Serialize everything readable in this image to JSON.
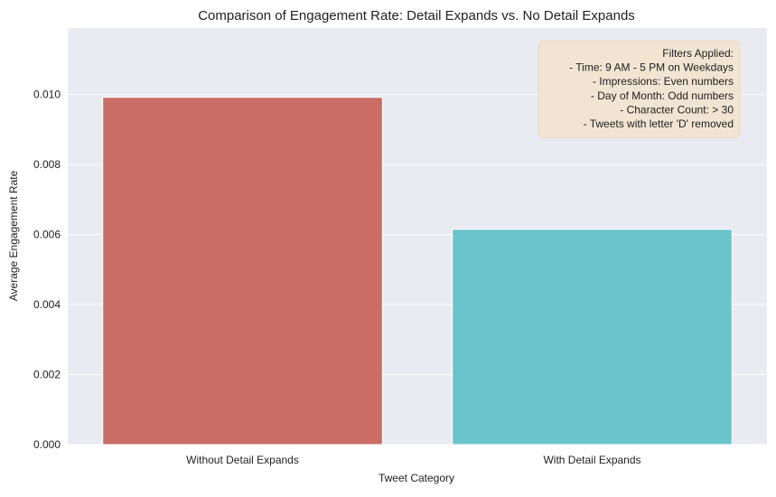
{
  "chart_data": {
    "type": "bar",
    "title": "Comparison of Engagement Rate: Detail Expands vs. No Detail Expands",
    "xlabel": "Tweet Category",
    "ylabel": "Average Engagement Rate",
    "categories": [
      "Without Detail Expands",
      "With Detail Expands"
    ],
    "values": [
      0.00992,
      0.00615
    ],
    "bar_colors": [
      "#c96d66",
      "#69c5cb"
    ],
    "ylim": [
      0,
      0.0119
    ],
    "yticks": [
      0.0,
      0.002,
      0.004,
      0.006,
      0.008,
      0.01
    ],
    "ytick_labels": [
      "0.000",
      "0.002",
      "0.004",
      "0.006",
      "0.008",
      "0.010"
    ],
    "grid": true,
    "annotation": {
      "placement": "top-right",
      "lines": [
        "Filters Applied:",
        "- Time: 9 AM - 5 PM on Weekdays",
        "- Impressions: Even numbers",
        "- Day of Month: Odd numbers",
        "- Character Count: > 30",
        "- Tweets with letter 'D' removed"
      ],
      "background": "#f1e4d2"
    },
    "plot_background": "#eaeaf2",
    "grid_color": "#ffffff"
  }
}
